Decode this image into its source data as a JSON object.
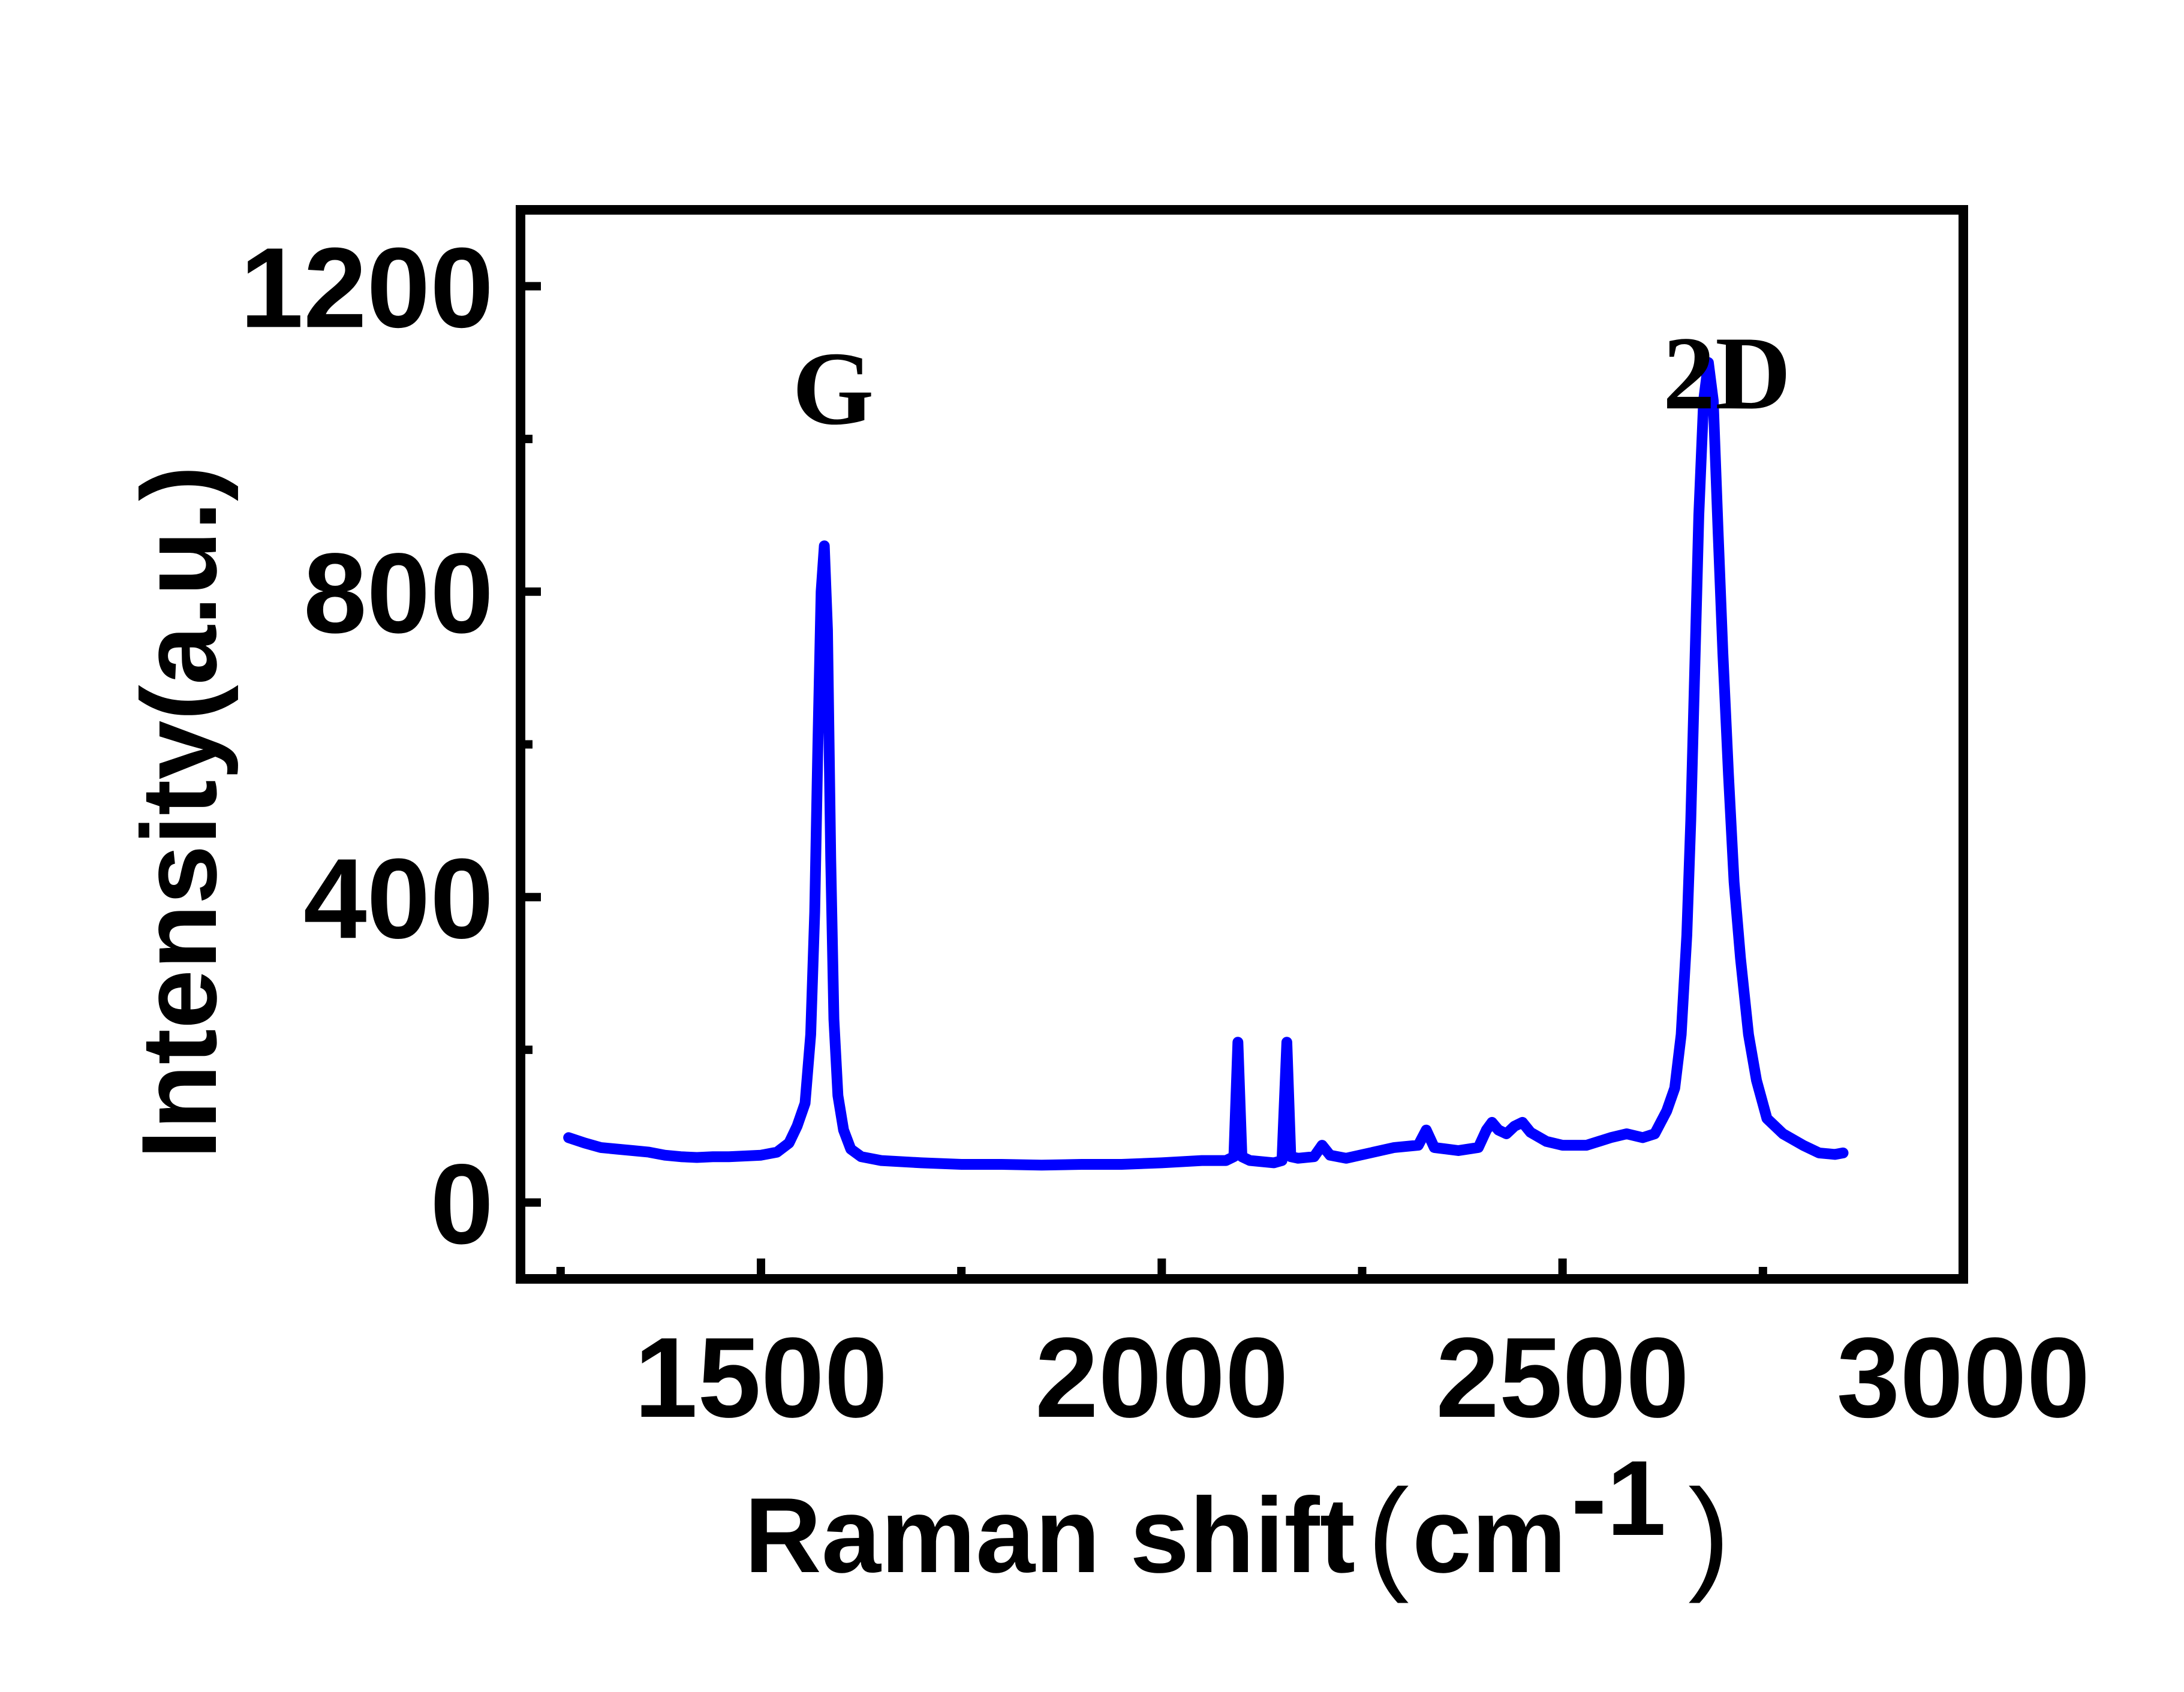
{
  "chart_data": {
    "type": "line",
    "xlabel": "Raman shift",
    "xlabel_unit": "cm",
    "xlabel_exp": "-1",
    "ylabel": "Intensity(a.u.)",
    "xlim": [
      1200,
      3000
    ],
    "ylim": [
      -100,
      1300
    ],
    "x_ticks": [
      1500,
      2000,
      2500,
      3000
    ],
    "y_ticks": [
      0,
      400,
      800,
      1200
    ],
    "x_ticks_minor": [
      1250,
      1750,
      2250,
      2750
    ],
    "y_ticks_minor": [
      200,
      600,
      1000
    ],
    "grid": false,
    "line_color": "#0000FF",
    "annotations": [
      {
        "text": "G",
        "x": 1590,
        "y": 1020
      },
      {
        "text": "2D",
        "x": 2705,
        "y": 1040
      }
    ],
    "series": [
      {
        "values": [
          [
            1260,
            85
          ],
          [
            1280,
            78
          ],
          [
            1300,
            72
          ],
          [
            1320,
            70
          ],
          [
            1340,
            68
          ],
          [
            1360,
            66
          ],
          [
            1380,
            62
          ],
          [
            1400,
            60
          ],
          [
            1420,
            59
          ],
          [
            1440,
            60
          ],
          [
            1460,
            60
          ],
          [
            1480,
            61
          ],
          [
            1500,
            62
          ],
          [
            1520,
            66
          ],
          [
            1535,
            78
          ],
          [
            1545,
            100
          ],
          [
            1555,
            130
          ],
          [
            1562,
            220
          ],
          [
            1567,
            380
          ],
          [
            1571,
            600
          ],
          [
            1575,
            800
          ],
          [
            1579,
            860
          ],
          [
            1583,
            750
          ],
          [
            1587,
            450
          ],
          [
            1591,
            240
          ],
          [
            1596,
            140
          ],
          [
            1603,
            95
          ],
          [
            1612,
            70
          ],
          [
            1625,
            60
          ],
          [
            1650,
            55
          ],
          [
            1700,
            52
          ],
          [
            1750,
            50
          ],
          [
            1800,
            50
          ],
          [
            1850,
            49
          ],
          [
            1900,
            50
          ],
          [
            1950,
            50
          ],
          [
            2000,
            52
          ],
          [
            2050,
            55
          ],
          [
            2080,
            55
          ],
          [
            2090,
            60
          ],
          [
            2095,
            210
          ],
          [
            2100,
            60
          ],
          [
            2110,
            55
          ],
          [
            2140,
            52
          ],
          [
            2150,
            55
          ],
          [
            2156,
            210
          ],
          [
            2161,
            60
          ],
          [
            2170,
            58
          ],
          [
            2190,
            60
          ],
          [
            2200,
            75
          ],
          [
            2210,
            62
          ],
          [
            2230,
            58
          ],
          [
            2260,
            65
          ],
          [
            2290,
            72
          ],
          [
            2320,
            75
          ],
          [
            2330,
            95
          ],
          [
            2340,
            72
          ],
          [
            2370,
            68
          ],
          [
            2395,
            72
          ],
          [
            2405,
            95
          ],
          [
            2412,
            105
          ],
          [
            2420,
            95
          ],
          [
            2430,
            90
          ],
          [
            2440,
            100
          ],
          [
            2450,
            105
          ],
          [
            2460,
            92
          ],
          [
            2480,
            80
          ],
          [
            2500,
            75
          ],
          [
            2530,
            75
          ],
          [
            2560,
            85
          ],
          [
            2580,
            90
          ],
          [
            2600,
            85
          ],
          [
            2615,
            90
          ],
          [
            2630,
            120
          ],
          [
            2640,
            150
          ],
          [
            2648,
            220
          ],
          [
            2655,
            350
          ],
          [
            2660,
            500
          ],
          [
            2665,
            700
          ],
          [
            2670,
            900
          ],
          [
            2676,
            1050
          ],
          [
            2682,
            1100
          ],
          [
            2688,
            1050
          ],
          [
            2694,
            880
          ],
          [
            2700,
            720
          ],
          [
            2707,
            560
          ],
          [
            2714,
            420
          ],
          [
            2722,
            320
          ],
          [
            2732,
            220
          ],
          [
            2742,
            160
          ],
          [
            2755,
            110
          ],
          [
            2775,
            90
          ],
          [
            2800,
            75
          ],
          [
            2820,
            65
          ],
          [
            2840,
            63
          ],
          [
            2850,
            65
          ]
        ]
      }
    ]
  }
}
